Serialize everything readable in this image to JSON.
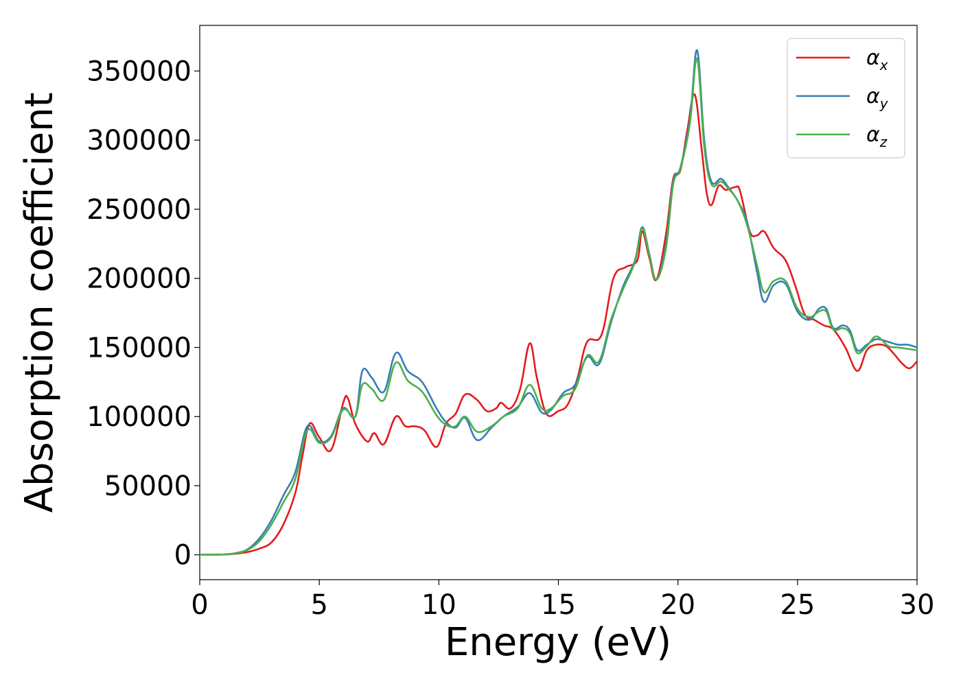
{
  "chart_data": {
    "type": "line",
    "title": "",
    "xlabel": "Energy (eV)",
    "ylabel": "Absorption coefficient",
    "xlim": [
      0,
      30
    ],
    "ylim": [
      -18000,
      383000
    ],
    "x_ticks": [
      0,
      5,
      10,
      15,
      20,
      25,
      30
    ],
    "y_ticks": [
      0,
      50000,
      100000,
      150000,
      200000,
      250000,
      300000,
      350000
    ],
    "x_tick_labels": [
      "0",
      "5",
      "10",
      "15",
      "20",
      "25",
      "30"
    ],
    "y_tick_labels": [
      "0",
      "50000",
      "100000",
      "150000",
      "200000",
      "250000",
      "300000",
      "350000"
    ],
    "grid": false,
    "legend": "top-right",
    "series": [
      {
        "name": "αx",
        "symbol": "α",
        "subscript": "x",
        "color": "#e41a1c",
        "x": [
          0,
          1,
          1.5,
          2,
          2.5,
          3,
          3.5,
          4,
          4.3,
          4.6,
          5,
          5.5,
          6,
          6.2,
          6.5,
          7,
          7.3,
          7.7,
          8.2,
          8.6,
          9,
          9.4,
          9.9,
          10.3,
          10.7,
          11.1,
          11.6,
          12,
          12.4,
          12.6,
          13,
          13.4,
          13.8,
          14.1,
          14.5,
          15,
          15.4,
          15.8,
          16.2,
          16.8,
          17.3,
          17.8,
          18.3,
          18.5,
          18.8,
          19.1,
          19.5,
          19.8,
          20.1,
          20.4,
          20.7,
          21,
          21.2,
          21.4,
          21.7,
          22,
          22.4,
          22.6,
          23,
          23.3,
          23.6,
          24,
          24.5,
          24.9,
          25.3,
          25.7,
          26.1,
          26.5,
          27,
          27.5,
          27.9,
          28.3,
          28.7,
          29,
          29.4,
          29.7,
          30
        ],
        "values": [
          0,
          200,
          800,
          2000,
          4500,
          9000,
          22000,
          45000,
          72000,
          95000,
          85000,
          76000,
          110000,
          113000,
          95000,
          82000,
          88000,
          80000,
          100000,
          93000,
          93000,
          90000,
          78000,
          95000,
          102000,
          116000,
          112000,
          104000,
          106000,
          110000,
          106000,
          120000,
          153000,
          128000,
          102000,
          104000,
          109000,
          128000,
          154000,
          159000,
          200000,
          208000,
          213000,
          234000,
          215000,
          199000,
          232000,
          272000,
          278000,
          308000,
          333000,
          292000,
          262000,
          253000,
          267000,
          264000,
          266000,
          263000,
          234000,
          231000,
          234000,
          222000,
          213000,
          195000,
          174000,
          170000,
          166000,
          163000,
          150000,
          133000,
          148000,
          152000,
          151000,
          146000,
          138000,
          135000,
          140000
        ]
      },
      {
        "name": "αy",
        "symbol": "α",
        "subscript": "y",
        "color": "#377eb8",
        "x": [
          0,
          1,
          1.5,
          2,
          2.5,
          3,
          3.5,
          4,
          4.5,
          5,
          5.5,
          6,
          6.5,
          6.8,
          7.2,
          7.7,
          8.2,
          8.7,
          9.3,
          9.9,
          10.3,
          10.7,
          11.1,
          11.6,
          12.2,
          12.7,
          13.3,
          13.8,
          14.3,
          14.7,
          15.2,
          15.7,
          16.2,
          16.7,
          17.2,
          17.7,
          18.2,
          18.5,
          18.8,
          19.1,
          19.5,
          19.8,
          20.1,
          20.5,
          20.8,
          21.1,
          21.4,
          21.8,
          22.1,
          22.5,
          22.9,
          23.3,
          23.6,
          24,
          24.5,
          25,
          25.5,
          25.9,
          26.2,
          26.5,
          26.9,
          27.2,
          27.5,
          27.9,
          28.3,
          28.8,
          29.2,
          29.6,
          30
        ],
        "values": [
          0,
          300,
          1200,
          4000,
          12000,
          25000,
          43000,
          60000,
          93000,
          82000,
          86000,
          106000,
          100000,
          133000,
          128000,
          118000,
          146000,
          133000,
          125000,
          106000,
          96000,
          92000,
          99000,
          83000,
          92000,
          100000,
          107000,
          117000,
          103000,
          105000,
          117000,
          123000,
          143000,
          138000,
          168000,
          194000,
          213000,
          237000,
          218000,
          199000,
          225000,
          270000,
          280000,
          315000,
          365000,
          300000,
          270000,
          272000,
          266000,
          256000,
          240000,
          205000,
          183000,
          195000,
          196000,
          176000,
          170000,
          178000,
          178000,
          164000,
          166000,
          162000,
          148000,
          152000,
          156000,
          154000,
          152000,
          152000,
          150000
        ]
      },
      {
        "name": "αz",
        "symbol": "α",
        "subscript": "z",
        "color": "#4daf4a",
        "x": [
          0,
          1,
          1.5,
          2,
          2.5,
          3,
          3.5,
          4,
          4.5,
          5,
          5.5,
          6,
          6.5,
          6.8,
          7.2,
          7.7,
          8.2,
          8.7,
          9.3,
          9.9,
          10.3,
          10.7,
          11.1,
          11.6,
          12.2,
          12.7,
          13.3,
          13.8,
          14.3,
          14.7,
          15.2,
          15.7,
          16.2,
          16.7,
          17.2,
          17.7,
          18.2,
          18.5,
          18.8,
          19.1,
          19.5,
          19.8,
          20.1,
          20.5,
          20.8,
          21.1,
          21.4,
          21.8,
          22.1,
          22.5,
          22.9,
          23.3,
          23.6,
          24,
          24.5,
          25,
          25.5,
          25.9,
          26.2,
          26.5,
          26.9,
          27.2,
          27.5,
          27.9,
          28.3,
          28.8,
          29.2,
          29.6,
          30
        ],
        "values": [
          0,
          300,
          1100,
          3500,
          10000,
          22000,
          38000,
          55000,
          90000,
          81000,
          85000,
          105000,
          100000,
          123000,
          120000,
          112000,
          139000,
          126000,
          118000,
          101000,
          94000,
          93000,
          100000,
          89000,
          93000,
          100000,
          106000,
          123000,
          106000,
          106000,
          115000,
          120000,
          144000,
          140000,
          170000,
          192000,
          212000,
          236000,
          217000,
          199000,
          222000,
          268000,
          279000,
          312000,
          359000,
          295000,
          268000,
          270000,
          265000,
          256000,
          238000,
          210000,
          190000,
          198000,
          198000,
          178000,
          172000,
          176000,
          176000,
          163000,
          164000,
          160000,
          146000,
          151000,
          158000,
          151000,
          150000,
          149000,
          148000
        ]
      }
    ]
  }
}
